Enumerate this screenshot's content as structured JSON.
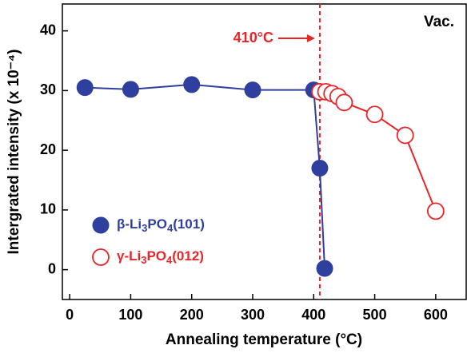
{
  "chart_data": {
    "type": "line",
    "x_label": "Annealing temperature (°C)",
    "y_label": "Intergrated intensity (x 10⁻⁴)",
    "annotation": "Vac.",
    "vline": {
      "x": 410,
      "label": "410°C",
      "color": "#e8262a"
    },
    "xlim": [
      -12,
      650
    ],
    "xticks": [
      0,
      100,
      200,
      300,
      400,
      500,
      600
    ],
    "ylim": [
      -5,
      44.5
    ],
    "yticks": [
      0,
      10,
      20,
      30,
      40
    ],
    "legend": "lower-left",
    "series": [
      {
        "name": "β-Li3PO4(101)",
        "color": "#2e3f9e",
        "marker_style": "filled",
        "x": [
          25,
          100,
          200,
          300,
          400,
          410,
          418
        ],
        "values": [
          30.5,
          30.2,
          31,
          30.1,
          30.1,
          17,
          0.2
        ]
      },
      {
        "name": "γ-Li3PO4(012)",
        "color": "#e8262a",
        "marker_style": "open",
        "x": [
          410,
          420,
          430,
          440,
          450,
          500,
          550,
          600
        ],
        "values": [
          29.8,
          29.8,
          29.5,
          29,
          28,
          26,
          22.5,
          9.8
        ]
      }
    ]
  }
}
